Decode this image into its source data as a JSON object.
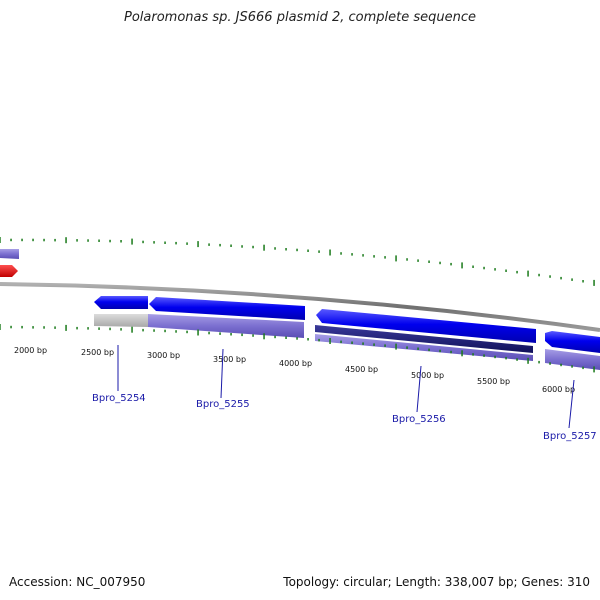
{
  "map": {
    "title": "Polaromonas sp. JS666 plasmid 2, complete sequence",
    "accession": "Accession: NC_007950",
    "summary": "Topology: circular; Length: 338,007 bp; Genes: 310"
  },
  "ruler": {
    "labels": [
      "2000 bp",
      "2500 bp",
      "3000 bp",
      "3500 bp",
      "4000 bp",
      "4500 bp",
      "5000 bp",
      "5500 bp",
      "6000 bp"
    ]
  },
  "genes": [
    {
      "name": "Bpro_5254"
    },
    {
      "name": "Bpro_5255"
    },
    {
      "name": "Bpro_5256"
    },
    {
      "name": "Bpro_5257"
    }
  ],
  "colors": {
    "cds_forward": "#0000ee",
    "cds_reverse_highlight": "#ee0000",
    "feature_lavender": "#7b6fd0",
    "feature_dark": "#1a1a7a",
    "feature_grey": "#c0c0c0",
    "backbone": "#808080",
    "tick_green": "#1a7a1a",
    "gene_label": "#1a1aa8"
  }
}
